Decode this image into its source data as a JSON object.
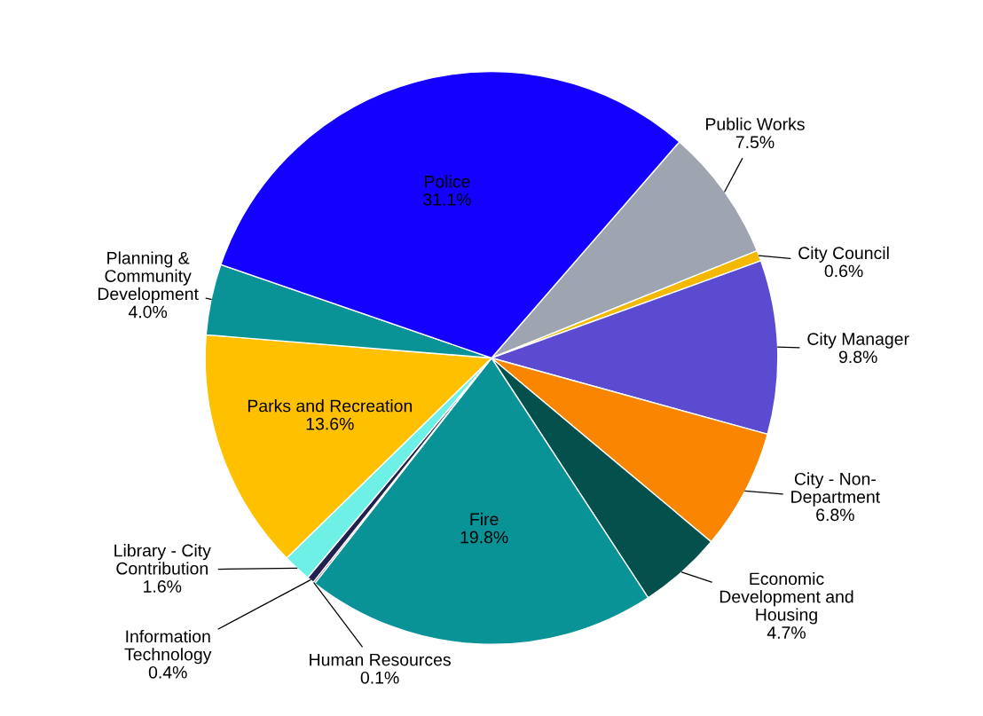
{
  "chart_data": {
    "type": "pie",
    "categories": [
      "Public Works",
      "City Council",
      "City Manager",
      "City - Non-\nDepartment",
      "Economic\nDevelopment and\nHousing",
      "Fire",
      "Human Resources",
      "Information\nTechnology",
      "Library - City\nContribution",
      "Parks and Recreation",
      "Planning &\nCommunity\nDevelopment",
      "Police"
    ],
    "values": [
      7.5,
      0.6,
      9.8,
      6.8,
      4.7,
      19.8,
      0.1,
      0.4,
      1.6,
      13.6,
      4.0,
      31.1
    ],
    "value_labels": [
      "7.5%",
      "0.6%",
      "9.8%",
      "6.8%",
      "4.7%",
      "19.8%",
      "0.1%",
      "0.4%",
      "1.6%",
      "13.6%",
      "4.0%",
      "31.1%"
    ],
    "colors": [
      "#9ea5b0",
      "#f5b800",
      "#5b4bd1",
      "#f98500",
      "#03504c",
      "#0a9396",
      "#1a1a5e",
      "#22204f",
      "#6ef0e6",
      "#ffc000",
      "#0a9396",
      "#1400ff"
    ],
    "legend": false
  }
}
